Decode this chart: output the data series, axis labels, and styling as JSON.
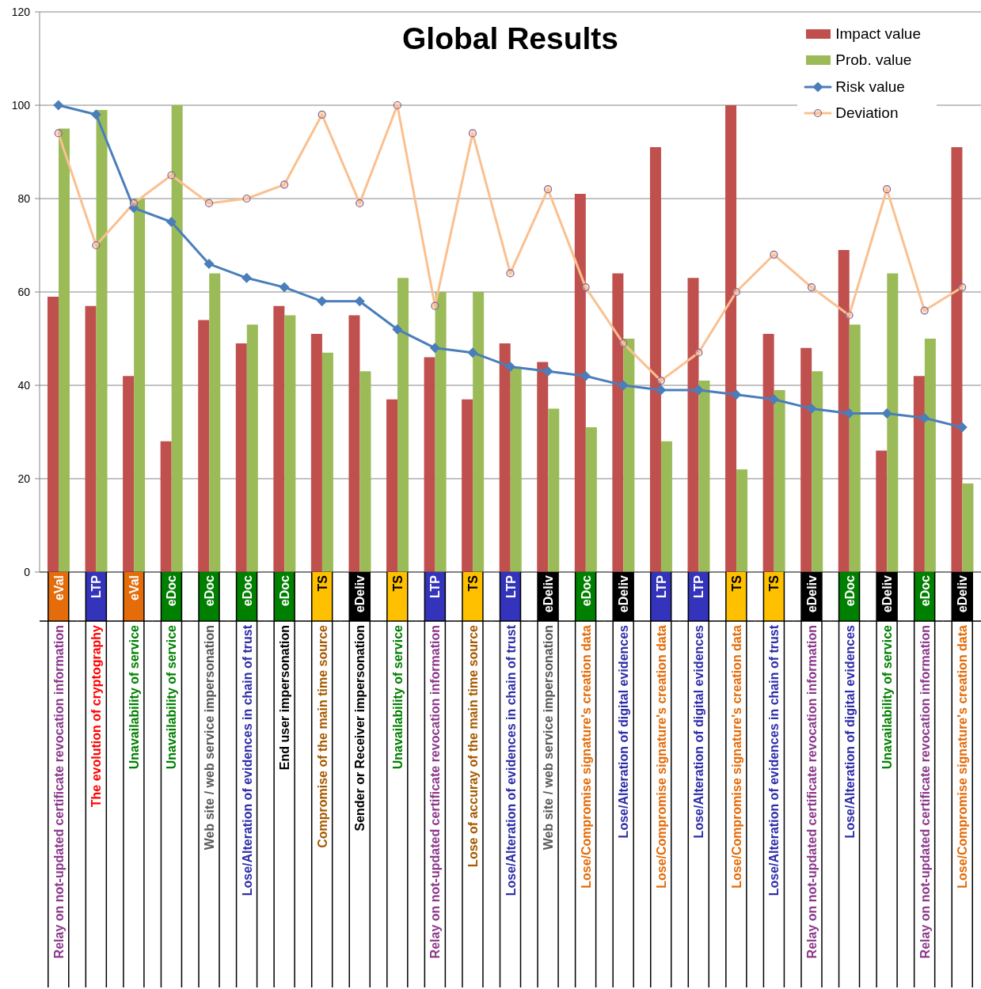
{
  "chart_data": {
    "type": "bar",
    "title": "Global Results",
    "categories": [
      "eVal\nRelay on not-updated certificate revocation information",
      "LTP\nThe evolution of cryptography",
      "eVal\nUnavailability of service",
      "eDoc\nUnavailability of service",
      "eDoc\nWeb site / web service impersonation",
      "eDoc\nLose/Alteration of evidences in chain of trust",
      "eDoc\nEnd user impersonation",
      "TS\nCompromise of the main time source",
      "eDeliv\nSender or Receiver impersonation",
      "TS\nUnavailability of service",
      "LTP\nRelay on not-updated certificate revocation information",
      "TS\nLose of accuray of the main time source",
      "LTP\nLose/Alteration of evidences in chain of trust",
      "eDeliv\nWeb site / web service impersonation",
      "eDoc\nLose/Compromise signature's creation data",
      "eDeliv\nLose/Alteration of digital evidences",
      "LTP\nLose/Compromise signature's creation data",
      "LTP\nLose/Alteration of digital evidences",
      "TS\nLose/Compromise signature's creation data",
      "TS\nLose/Alteration of evidences in chain of trust",
      "eDeliv\nRelay on not-updated certificate revocation information",
      "eDoc\nLose/Alteration of digital evidences",
      "eDeliv\nUnavailability of service",
      "eDoc\nRelay on not-updated certificate revocation information",
      "eDeliv\nLose/Compromise signature's creation data"
    ],
    "series": [
      {
        "name": "Impact value",
        "color": "#c0504d",
        "values": [
          59,
          57,
          42,
          28,
          54,
          49,
          57,
          51,
          55,
          37,
          46,
          37,
          49,
          45,
          81,
          64,
          91,
          63,
          100,
          51,
          48,
          69,
          26,
          42,
          91
        ]
      },
      {
        "name": "Prob. value",
        "color": "#9bbb59",
        "values": [
          95,
          99,
          80,
          100,
          64,
          53,
          55,
          47,
          43,
          63,
          60,
          60,
          44,
          35,
          31,
          50,
          28,
          41,
          22,
          39,
          43,
          53,
          64,
          50,
          19
        ]
      },
      {
        "name": "Risk value",
        "type": "line",
        "color": "#4a7ebb",
        "marker": "diamond",
        "values": [
          100,
          98,
          78,
          75,
          66,
          63,
          61,
          58,
          58,
          52,
          48,
          47,
          44,
          43,
          42,
          40,
          39,
          39,
          38,
          37,
          35,
          34,
          34,
          33,
          31
        ]
      },
      {
        "name": "Deviation",
        "type": "line",
        "color": "#fac090",
        "marker": "circle",
        "values": [
          94,
          70,
          79,
          85,
          79,
          80,
          83,
          98,
          79,
          100,
          57,
          94,
          64,
          82,
          61,
          49,
          41,
          47,
          60,
          68,
          61,
          55,
          82,
          56,
          61
        ]
      }
    ],
    "ylim": [
      0,
      120
    ],
    "yticks": [
      0,
      20,
      40,
      60,
      80,
      100,
      120
    ],
    "grid": "y",
    "legend": "top right"
  }
}
